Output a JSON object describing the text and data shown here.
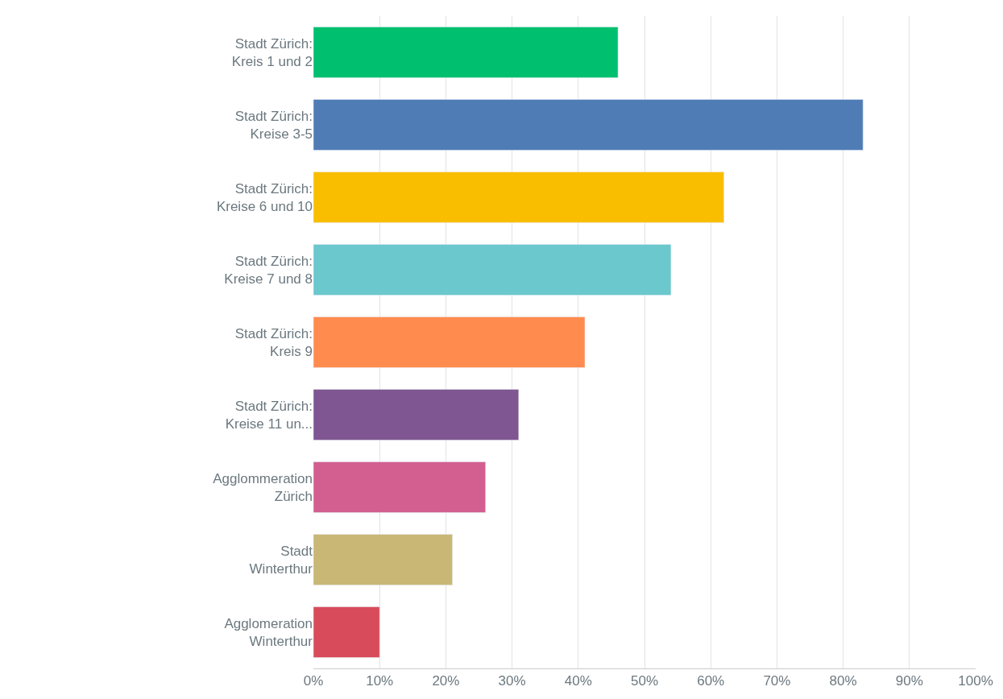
{
  "chart_data": {
    "type": "bar",
    "orientation": "horizontal",
    "categories": [
      "Stadt Zürich:\nKreis 1 und 2",
      "Stadt Zürich:\nKreise 3-5",
      "Stadt Zürich:\nKreise 6 und 10",
      "Stadt Zürich:\nKreise 7 und 8",
      "Stadt Zürich:\nKreis 9",
      "Stadt Zürich:\nKreise 11 un...",
      "Agglommeration\nZürich",
      "Stadt\nWinterthur",
      "Agglomeration\nWinterthur"
    ],
    "values": [
      46,
      83,
      62,
      54,
      41,
      31,
      26,
      21,
      10
    ],
    "colors": [
      "#00bf6f",
      "#507cb6",
      "#f9be00",
      "#6bc8cd",
      "#ff8b4f",
      "#7f5691",
      "#d25f90",
      "#c9b776",
      "#d84b5a"
    ],
    "xlim": [
      0,
      100
    ],
    "xticks": [
      {
        "value": 0,
        "label": "0%"
      },
      {
        "value": 10,
        "label": "10%"
      },
      {
        "value": 20,
        "label": "20%"
      },
      {
        "value": 30,
        "label": "30%"
      },
      {
        "value": 40,
        "label": "40%"
      },
      {
        "value": 50,
        "label": "50%"
      },
      {
        "value": 60,
        "label": "60%"
      },
      {
        "value": 70,
        "label": "70%"
      },
      {
        "value": 80,
        "label": "80%"
      },
      {
        "value": 90,
        "label": "90%"
      },
      {
        "value": 100,
        "label": "100%"
      }
    ],
    "grid": "x"
  }
}
